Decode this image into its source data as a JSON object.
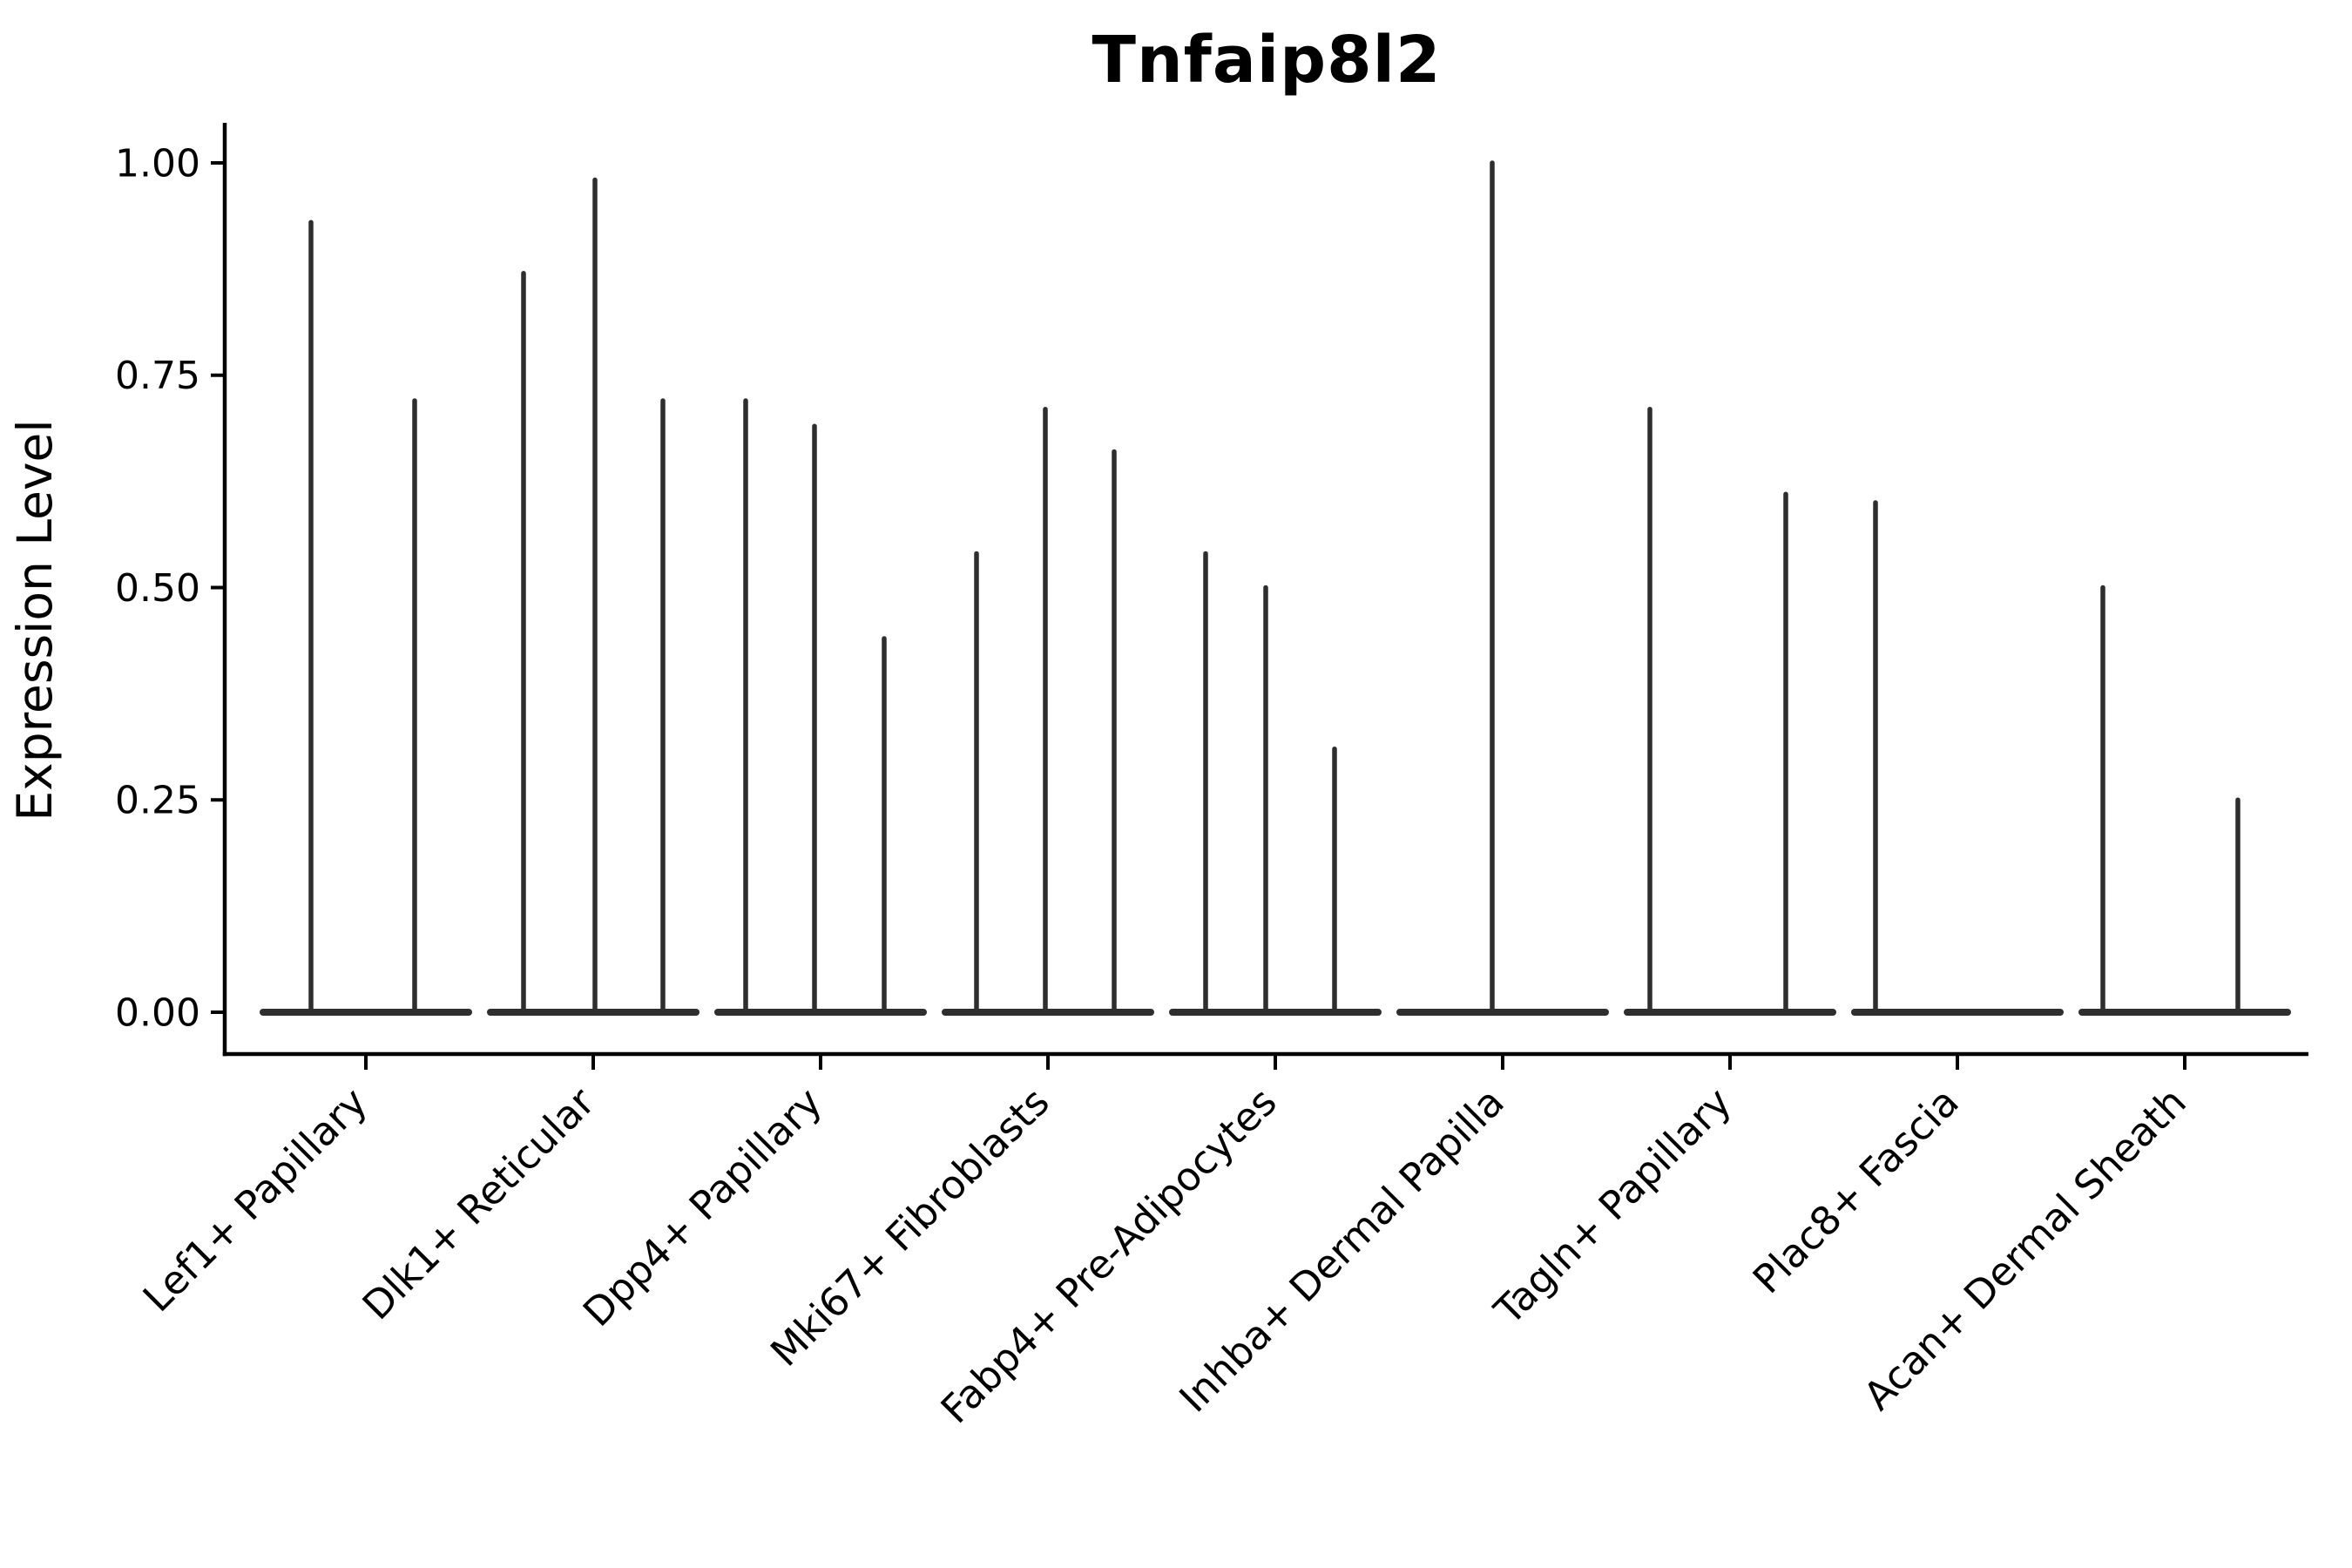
{
  "chart_data": {
    "type": "violin",
    "title": "Tnfaip8l2",
    "ylabel": "Expression Level",
    "xlabel": "",
    "ylim": [
      0,
      1
    ],
    "ytick_values": [
      0,
      0.25,
      0.5,
      0.75,
      1
    ],
    "ytick_labels": [
      "0.00",
      "0.25",
      "0.50",
      "0.75",
      "1.00"
    ],
    "grid": false,
    "legend": false,
    "categories": [
      "Lef1+ Papillary",
      "Dlk1+ Reticular",
      "Dpp4+ Papillary",
      "Mki67+ Fibroblasts",
      "Fabp4+ Pre-Adipocytes",
      "Inhba+ Dermal Papilla",
      "Tagln+ Papillary",
      "Plac8+ Fascia",
      "Acan+ Dermal Sheath"
    ],
    "groups": [
      {
        "label": "Lef1+ Papillary",
        "spikes": [
          {
            "offset": -63,
            "peak": 0.93
          },
          {
            "offset": 56,
            "peak": 0.72
          }
        ]
      },
      {
        "label": "Dlk1+ Reticular",
        "spikes": [
          {
            "offset": -80,
            "peak": 0.87
          },
          {
            "offset": 2,
            "peak": 0.98
          },
          {
            "offset": 80,
            "peak": 0.72
          }
        ]
      },
      {
        "label": "Dpp4+ Papillary",
        "spikes": [
          {
            "offset": -86,
            "peak": 0.72
          },
          {
            "offset": -7,
            "peak": 0.69
          },
          {
            "offset": 73,
            "peak": 0.44
          }
        ]
      },
      {
        "label": "Mki67+ Fibroblasts",
        "spikes": [
          {
            "offset": -82,
            "peak": 0.54
          },
          {
            "offset": -3,
            "peak": 0.71
          },
          {
            "offset": 76,
            "peak": 0.66
          }
        ]
      },
      {
        "label": "Fabp4+ Pre-Adipocytes",
        "spikes": [
          {
            "offset": -80,
            "peak": 0.54
          },
          {
            "offset": -11,
            "peak": 0.5
          },
          {
            "offset": 68,
            "peak": 0.31
          }
        ]
      },
      {
        "label": "Inhba+ Dermal Papilla",
        "spikes": [
          {
            "offset": -12,
            "peak": 1.0
          }
        ]
      },
      {
        "label": "Tagln+ Papillary",
        "spikes": [
          {
            "offset": -92,
            "peak": 0.71
          },
          {
            "offset": 64,
            "peak": 0.61
          }
        ]
      },
      {
        "label": "Plac8+ Fascia",
        "spikes": [
          {
            "offset": -94,
            "peak": 0.6
          }
        ]
      },
      {
        "label": "Acan+ Dermal Sheath",
        "spikes": [
          {
            "offset": -94,
            "peak": 0.5
          },
          {
            "offset": 61,
            "peak": 0.25
          }
        ]
      }
    ],
    "colors": {
      "violin": "#2e2e2e",
      "axis": "#000000",
      "text": "#000000",
      "background": "#ffffff"
    }
  }
}
